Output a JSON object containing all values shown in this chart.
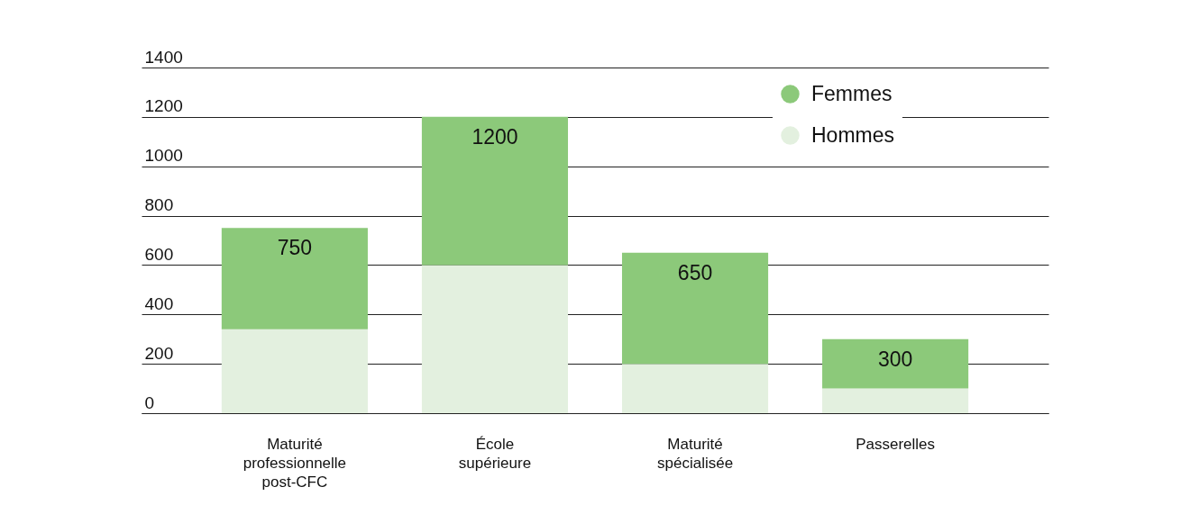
{
  "chart_data": {
    "type": "bar",
    "stacked": true,
    "categories": [
      "Maturité professionnelle post-CFC",
      "École supérieure",
      "Maturité spécialisée",
      "Passerelles"
    ],
    "series": [
      {
        "name": "Hommes",
        "color": "#e3f0df",
        "values": [
          340,
          600,
          200,
          100
        ]
      },
      {
        "name": "Femmes",
        "color": "#8cc97a",
        "values": [
          410,
          600,
          450,
          200
        ]
      }
    ],
    "totals": [
      "750",
      "1200",
      "650",
      "300"
    ],
    "ylim": [
      0,
      1400
    ],
    "yticks": [
      0,
      200,
      400,
      600,
      800,
      1000,
      1200,
      1400
    ],
    "grid": "y",
    "legend": "top right"
  }
}
